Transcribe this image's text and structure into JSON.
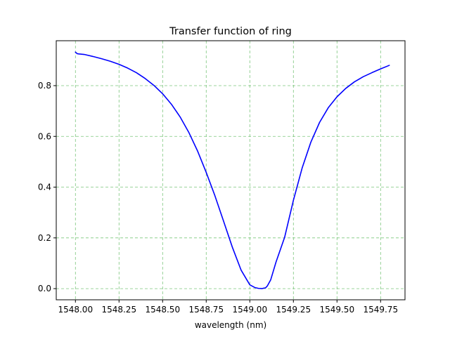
{
  "chart_data": {
    "type": "line",
    "title": "Transfer function of ring",
    "xlabel": "wavelength (nm)",
    "ylabel": "",
    "xlim": [
      1547.89,
      1549.89
    ],
    "ylim": [
      -0.044,
      0.977
    ],
    "xticks": [
      1548.0,
      1548.25,
      1548.5,
      1548.75,
      1549.0,
      1549.25,
      1549.5,
      1549.75
    ],
    "xtick_labels": [
      "1548.00",
      "1548.25",
      "1548.50",
      "1548.75",
      "1549.00",
      "1549.25",
      "1549.50",
      "1549.75"
    ],
    "yticks": [
      0.0,
      0.2,
      0.4,
      0.6,
      0.8
    ],
    "ytick_labels": [
      "0.0",
      "0.2",
      "0.4",
      "0.6",
      "0.8"
    ],
    "grid": true,
    "grid_color": "#5cb85c",
    "line_color": "#0000ff",
    "series": [
      {
        "x": [
          1548.0,
          1548.01,
          1548.02,
          1548.05,
          1548.1,
          1548.15,
          1548.2,
          1548.25,
          1548.3,
          1548.35,
          1548.4,
          1548.45,
          1548.5,
          1548.55,
          1548.6,
          1548.65,
          1548.7,
          1548.75,
          1548.8,
          1548.85,
          1548.9,
          1548.95,
          1549.0,
          1549.03,
          1549.05,
          1549.07,
          1549.08,
          1549.09,
          1549.1,
          1549.12,
          1549.15,
          1549.2,
          1549.25,
          1549.3,
          1549.35,
          1549.4,
          1549.45,
          1549.5,
          1549.55,
          1549.6,
          1549.65,
          1549.7,
          1549.75,
          1549.8
        ],
        "y": [
          0.932,
          0.926,
          0.925,
          0.923,
          0.915,
          0.906,
          0.896,
          0.884,
          0.869,
          0.851,
          0.828,
          0.801,
          0.768,
          0.727,
          0.677,
          0.616,
          0.543,
          0.458,
          0.366,
          0.265,
          0.163,
          0.073,
          0.015,
          0.004,
          0.001,
          0.0,
          0.002,
          0.003,
          0.01,
          0.035,
          0.104,
          0.203,
          0.348,
          0.475,
          0.577,
          0.655,
          0.713,
          0.756,
          0.789,
          0.815,
          0.835,
          0.851,
          0.866,
          0.88
        ]
      }
    ]
  }
}
